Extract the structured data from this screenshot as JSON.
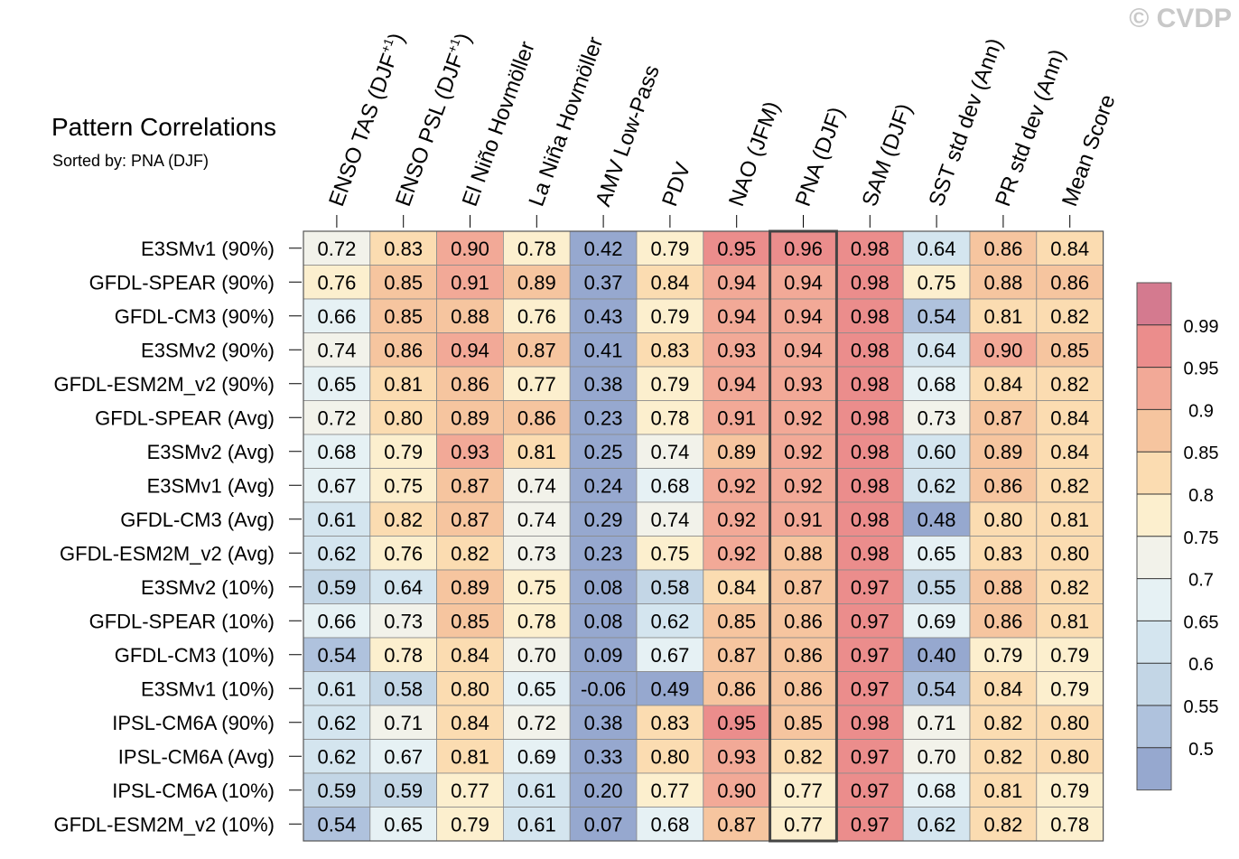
{
  "watermark": "© CVDP",
  "chart_data": {
    "type": "heatmap",
    "title": "Pattern Correlations",
    "subtitle": "Sorted by: PNA (DJF)",
    "highlight_column": "PNA (DJF)",
    "columns": [
      {
        "label": "ENSO TAS (DJF",
        "sup": "+1",
        "tail": ")"
      },
      {
        "label": "ENSO PSL (DJF",
        "sup": "+1",
        "tail": ")"
      },
      {
        "label": "El Niño Hovmöller",
        "sup": "",
        "tail": ""
      },
      {
        "label": "La Niña Hovmöller",
        "sup": "",
        "tail": ""
      },
      {
        "label": "AMV Low-Pass",
        "sup": "",
        "tail": ""
      },
      {
        "label": "PDV",
        "sup": "",
        "tail": ""
      },
      {
        "label": "NAO (JFM)",
        "sup": "",
        "tail": ""
      },
      {
        "label": "PNA (DJF)",
        "sup": "",
        "tail": ""
      },
      {
        "label": "SAM (DJF)",
        "sup": "",
        "tail": ""
      },
      {
        "label": "SST std dev (Ann)",
        "sup": "",
        "tail": ""
      },
      {
        "label": "PR std dev (Ann)",
        "sup": "",
        "tail": ""
      },
      {
        "label": "Mean Score",
        "sup": "",
        "tail": ""
      }
    ],
    "rows": [
      {
        "name": "E3SMv1 (90%)",
        "values": [
          "0.72",
          "0.83",
          "0.90",
          "0.78",
          "0.42",
          "0.79",
          "0.95",
          "0.96",
          "0.98",
          "0.64",
          "0.86",
          "0.84"
        ]
      },
      {
        "name": "GFDL-SPEAR (90%)",
        "values": [
          "0.76",
          "0.85",
          "0.91",
          "0.89",
          "0.37",
          "0.84",
          "0.94",
          "0.94",
          "0.98",
          "0.75",
          "0.88",
          "0.86"
        ]
      },
      {
        "name": "GFDL-CM3 (90%)",
        "values": [
          "0.66",
          "0.85",
          "0.88",
          "0.76",
          "0.43",
          "0.79",
          "0.94",
          "0.94",
          "0.98",
          "0.54",
          "0.81",
          "0.82"
        ]
      },
      {
        "name": "E3SMv2 (90%)",
        "values": [
          "0.74",
          "0.86",
          "0.94",
          "0.87",
          "0.41",
          "0.83",
          "0.93",
          "0.94",
          "0.98",
          "0.64",
          "0.90",
          "0.85"
        ]
      },
      {
        "name": "GFDL-ESM2M_v2 (90%)",
        "values": [
          "0.65",
          "0.81",
          "0.86",
          "0.77",
          "0.38",
          "0.79",
          "0.94",
          "0.93",
          "0.98",
          "0.68",
          "0.84",
          "0.82"
        ]
      },
      {
        "name": "GFDL-SPEAR (Avg)",
        "values": [
          "0.72",
          "0.80",
          "0.89",
          "0.86",
          "0.23",
          "0.78",
          "0.91",
          "0.92",
          "0.98",
          "0.73",
          "0.87",
          "0.84"
        ]
      },
      {
        "name": "E3SMv2 (Avg)",
        "values": [
          "0.68",
          "0.79",
          "0.93",
          "0.81",
          "0.25",
          "0.74",
          "0.89",
          "0.92",
          "0.98",
          "0.60",
          "0.89",
          "0.84"
        ]
      },
      {
        "name": "E3SMv1 (Avg)",
        "values": [
          "0.67",
          "0.75",
          "0.87",
          "0.74",
          "0.24",
          "0.68",
          "0.92",
          "0.92",
          "0.98",
          "0.62",
          "0.86",
          "0.82"
        ]
      },
      {
        "name": "GFDL-CM3 (Avg)",
        "values": [
          "0.61",
          "0.82",
          "0.87",
          "0.74",
          "0.29",
          "0.74",
          "0.92",
          "0.91",
          "0.98",
          "0.48",
          "0.80",
          "0.81"
        ]
      },
      {
        "name": "GFDL-ESM2M_v2 (Avg)",
        "values": [
          "0.62",
          "0.76",
          "0.82",
          "0.73",
          "0.23",
          "0.75",
          "0.92",
          "0.88",
          "0.98",
          "0.65",
          "0.83",
          "0.80"
        ]
      },
      {
        "name": "E3SMv2 (10%)",
        "values": [
          "0.59",
          "0.64",
          "0.89",
          "0.75",
          "0.08",
          "0.58",
          "0.84",
          "0.87",
          "0.97",
          "0.55",
          "0.88",
          "0.82"
        ]
      },
      {
        "name": "GFDL-SPEAR (10%)",
        "values": [
          "0.66",
          "0.73",
          "0.85",
          "0.78",
          "0.08",
          "0.62",
          "0.85",
          "0.86",
          "0.97",
          "0.69",
          "0.86",
          "0.81"
        ]
      },
      {
        "name": "GFDL-CM3 (10%)",
        "values": [
          "0.54",
          "0.78",
          "0.84",
          "0.70",
          "0.09",
          "0.67",
          "0.87",
          "0.86",
          "0.97",
          "0.40",
          "0.79",
          "0.79"
        ]
      },
      {
        "name": "E3SMv1 (10%)",
        "values": [
          "0.61",
          "0.58",
          "0.80",
          "0.65",
          "-0.06",
          "0.49",
          "0.86",
          "0.86",
          "0.97",
          "0.54",
          "0.84",
          "0.79"
        ]
      },
      {
        "name": "IPSL-CM6A (90%)",
        "values": [
          "0.62",
          "0.71",
          "0.84",
          "0.72",
          "0.38",
          "0.83",
          "0.95",
          "0.85",
          "0.98",
          "0.71",
          "0.82",
          "0.80"
        ]
      },
      {
        "name": "IPSL-CM6A (Avg)",
        "values": [
          "0.62",
          "0.67",
          "0.81",
          "0.69",
          "0.33",
          "0.80",
          "0.93",
          "0.82",
          "0.97",
          "0.70",
          "0.82",
          "0.80"
        ]
      },
      {
        "name": "IPSL-CM6A (10%)",
        "values": [
          "0.59",
          "0.59",
          "0.77",
          "0.61",
          "0.20",
          "0.77",
          "0.90",
          "0.77",
          "0.97",
          "0.68",
          "0.81",
          "0.79"
        ]
      },
      {
        "name": "GFDL-ESM2M_v2 (10%)",
        "values": [
          "0.54",
          "0.65",
          "0.79",
          "0.61",
          "0.07",
          "0.68",
          "0.87",
          "0.77",
          "0.97",
          "0.62",
          "0.82",
          "0.78"
        ]
      }
    ],
    "colorbar": {
      "levels": [
        "0.5",
        "0.55",
        "0.6",
        "0.65",
        "0.7",
        "0.75",
        "0.8",
        "0.85",
        "0.9",
        "0.95",
        "0.99"
      ],
      "thresholds": [
        0.5,
        0.55,
        0.6,
        0.65,
        0.7,
        0.75,
        0.8,
        0.85,
        0.9,
        0.95,
        0.99
      ],
      "colors": [
        "#96a8cf",
        "#afc2dd",
        "#c3d6e6",
        "#d4e5ef",
        "#e6f1f4",
        "#f2f2ea",
        "#fcefce",
        "#fbdcb1",
        "#f6c59f",
        "#f2a997",
        "#eb8d8c",
        "#d47a8f"
      ]
    }
  }
}
